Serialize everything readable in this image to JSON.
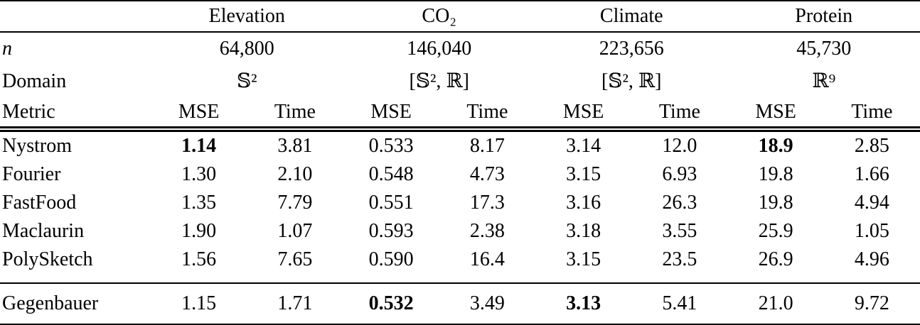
{
  "table": {
    "groups": [
      {
        "label": "Elevation",
        "n": "64,800",
        "domain": "𝕊²"
      },
      {
        "label": "CO₂",
        "n": "146,040",
        "domain": "[𝕊², ℝ]"
      },
      {
        "label": "Climate",
        "n": "223,656",
        "domain": "[𝕊², ℝ]"
      },
      {
        "label": "Protein",
        "n": "45,730",
        "domain": "ℝ⁹"
      }
    ],
    "row_headers": {
      "n": "n",
      "domain": "Domain",
      "metric": "Metric"
    },
    "metric_labels": {
      "mse": "MSE",
      "time": "Time"
    },
    "rows": [
      {
        "name": "Nystrom",
        "values": [
          "1.14",
          "3.81",
          "0.533",
          "8.17",
          "3.14",
          "12.0",
          "18.9",
          "2.85"
        ],
        "bold": [
          0,
          6
        ],
        "separated": false
      },
      {
        "name": "Fourier",
        "values": [
          "1.30",
          "2.10",
          "0.548",
          "4.73",
          "3.15",
          "6.93",
          "19.8",
          "1.66"
        ],
        "bold": [],
        "separated": false
      },
      {
        "name": "FastFood",
        "values": [
          "1.35",
          "7.79",
          "0.551",
          "17.3",
          "3.16",
          "26.3",
          "19.8",
          "4.94"
        ],
        "bold": [],
        "separated": false
      },
      {
        "name": "Maclaurin",
        "values": [
          "1.90",
          "1.07",
          "0.593",
          "2.38",
          "3.18",
          "3.55",
          "25.9",
          "1.05"
        ],
        "bold": [],
        "separated": false
      },
      {
        "name": "PolySketch",
        "values": [
          "1.56",
          "7.65",
          "0.590",
          "16.4",
          "3.15",
          "23.5",
          "26.9",
          "4.96"
        ],
        "bold": [],
        "separated": false
      },
      {
        "name": "Gegenbauer",
        "values": [
          "1.15",
          "1.71",
          "0.532",
          "3.49",
          "3.13",
          "5.41",
          "21.0",
          "9.72"
        ],
        "bold": [
          2,
          4
        ],
        "separated": true
      }
    ],
    "colors": {
      "text": "#000000",
      "background": "#ffffff",
      "rule": "#000000"
    }
  }
}
